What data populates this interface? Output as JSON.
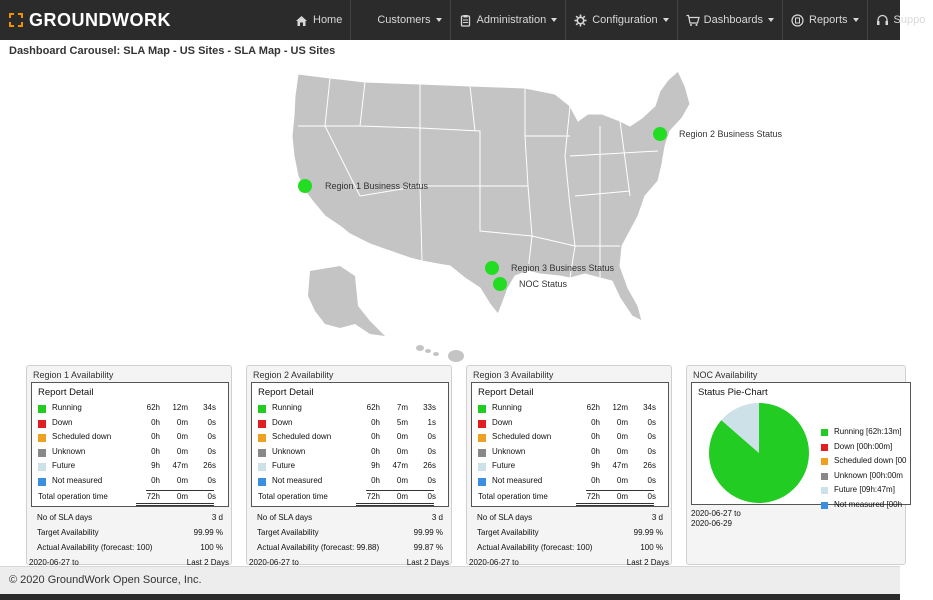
{
  "header": {
    "logo_text": "GROUNDWORK",
    "nav": [
      {
        "label": "Home",
        "icon": "home-icon",
        "caret": false
      },
      {
        "label": "Customers",
        "icon": "",
        "caret": true
      },
      {
        "label": "Administration",
        "icon": "clipboard-icon",
        "caret": true
      },
      {
        "label": "Configuration",
        "icon": "gear-icon",
        "caret": true
      },
      {
        "label": "Dashboards",
        "icon": "cart-icon",
        "caret": true
      },
      {
        "label": "Reports",
        "icon": "reports-icon",
        "caret": true
      },
      {
        "label": "Suppo",
        "icon": "headset-icon",
        "caret": false
      }
    ],
    "accent_color": "#f39200"
  },
  "page_title": "Dashboard Carousel: SLA Map - US Sites - SLA Map - US Sites",
  "map": {
    "markers": [
      {
        "label": "Region 1 Business Status",
        "color": "#22dd22"
      },
      {
        "label": "Region 2 Business Status",
        "color": "#22dd22"
      },
      {
        "label": "Region 3 Business Status",
        "color": "#22dd22"
      },
      {
        "label": "NOC Status",
        "color": "#22dd22"
      }
    ]
  },
  "status_colors": {
    "Running": "#22cc22",
    "Down": "#e02020",
    "Scheduled down": "#f0a020",
    "Unknown": "#888888",
    "Future": "#cde1e8",
    "Not measured": "#3a8fe0"
  },
  "panels": [
    {
      "title": "Region 1 Availability",
      "report_title": "Report Detail",
      "rows": [
        {
          "label": "Running",
          "h": "62h",
          "m": "12m",
          "s": "34s"
        },
        {
          "label": "Down",
          "h": "0h",
          "m": "0m",
          "s": "0s"
        },
        {
          "label": "Scheduled down",
          "h": "0h",
          "m": "0m",
          "s": "0s"
        },
        {
          "label": "Unknown",
          "h": "0h",
          "m": "0m",
          "s": "0s"
        },
        {
          "label": "Future",
          "h": "9h",
          "m": "47m",
          "s": "26s"
        },
        {
          "label": "Not measured",
          "h": "0h",
          "m": "0m",
          "s": "0s"
        }
      ],
      "total": {
        "label": "Total operation time",
        "h": "72h",
        "m": "0m",
        "s": "0s"
      },
      "stats": [
        {
          "label": "No of SLA days",
          "value": "3 d"
        },
        {
          "label": "Target Availability",
          "value": "99.99 %"
        },
        {
          "label": "Actual Availability (forecast: 100)",
          "value": "100 %"
        }
      ],
      "date_from": "2020-06-27 to",
      "range": "Last 2 Days"
    },
    {
      "title": "Region 2 Availability",
      "report_title": "Report Detail",
      "rows": [
        {
          "label": "Running",
          "h": "62h",
          "m": "7m",
          "s": "33s"
        },
        {
          "label": "Down",
          "h": "0h",
          "m": "5m",
          "s": "1s"
        },
        {
          "label": "Scheduled down",
          "h": "0h",
          "m": "0m",
          "s": "0s"
        },
        {
          "label": "Unknown",
          "h": "0h",
          "m": "0m",
          "s": "0s"
        },
        {
          "label": "Future",
          "h": "9h",
          "m": "47m",
          "s": "26s"
        },
        {
          "label": "Not measured",
          "h": "0h",
          "m": "0m",
          "s": "0s"
        }
      ],
      "total": {
        "label": "Total operation time",
        "h": "72h",
        "m": "0m",
        "s": "0s"
      },
      "stats": [
        {
          "label": "No of SLA days",
          "value": "3 d"
        },
        {
          "label": "Target Availability",
          "value": "99.99 %"
        },
        {
          "label": "Actual Availability (forecast: 99.88)",
          "value": "99.87 %"
        }
      ],
      "date_from": "2020-06-27 to",
      "range": "Last 2 Days"
    },
    {
      "title": "Region 3 Availability",
      "report_title": "Report Detail",
      "rows": [
        {
          "label": "Running",
          "h": "62h",
          "m": "12m",
          "s": "34s"
        },
        {
          "label": "Down",
          "h": "0h",
          "m": "0m",
          "s": "0s"
        },
        {
          "label": "Scheduled down",
          "h": "0h",
          "m": "0m",
          "s": "0s"
        },
        {
          "label": "Unknown",
          "h": "0h",
          "m": "0m",
          "s": "0s"
        },
        {
          "label": "Future",
          "h": "9h",
          "m": "47m",
          "s": "26s"
        },
        {
          "label": "Not measured",
          "h": "0h",
          "m": "0m",
          "s": "0s"
        }
      ],
      "total": {
        "label": "Total operation time",
        "h": "72h",
        "m": "0m",
        "s": "0s"
      },
      "stats": [
        {
          "label": "No of SLA days",
          "value": "3 d"
        },
        {
          "label": "Target Availability",
          "value": "99.99 %"
        },
        {
          "label": "Actual Availability (forecast: 100)",
          "value": "100 %"
        }
      ],
      "date_from": "2020-06-27 to",
      "range": "Last 2 Days"
    }
  ],
  "noc": {
    "title": "NOC Availability",
    "chart_title": "Status Pie-Chart",
    "legend": [
      {
        "label": "Running [62h:13m]",
        "key": "Running"
      },
      {
        "label": "Down [00h:00m]",
        "key": "Down"
      },
      {
        "label": "Scheduled down [00",
        "key": "Scheduled down"
      },
      {
        "label": "Unknown [00h:00m",
        "key": "Unknown"
      },
      {
        "label": "Future [09h:47m]",
        "key": "Future"
      },
      {
        "label": "Not measured [00h",
        "key": "Not measured"
      }
    ],
    "date_from": "2020-06-27 to",
    "date_to": "2020-06-29"
  },
  "chart_data": {
    "type": "pie",
    "title": "Status Pie-Chart",
    "categories": [
      "Running",
      "Down",
      "Scheduled down",
      "Unknown",
      "Future",
      "Not measured"
    ],
    "values": [
      62.22,
      0,
      0,
      0,
      9.78,
      0
    ],
    "units": "hours"
  },
  "footer": {
    "text": "© 2020 GroundWork Open Source, Inc."
  }
}
